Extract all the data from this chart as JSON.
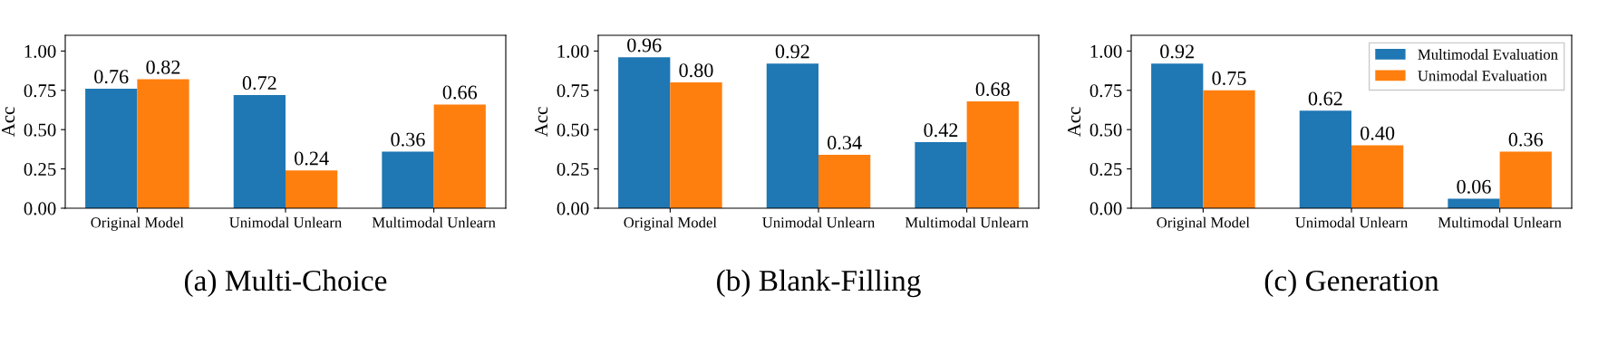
{
  "chart_data": [
    {
      "type": "bar",
      "title": "(a) Multi-Choice",
      "ylabel": "Acc",
      "categories": [
        "Original Model",
        "Unimodal Unlearn",
        "Multimodal Unlearn"
      ],
      "series": [
        {
          "color": "#1f77b4",
          "values": [
            0.76,
            0.72,
            0.36
          ],
          "value_labels": [
            "0.76",
            "0.72",
            "0.36"
          ]
        },
        {
          "color": "#ff7f0e",
          "values": [
            0.82,
            0.24,
            0.66
          ],
          "value_labels": [
            "0.82",
            "0.24",
            "0.66"
          ]
        }
      ],
      "ylim": [
        0,
        1.1
      ],
      "yticks": [
        {
          "value": 0,
          "label": "0.00"
        },
        {
          "value": 0.25,
          "label": "0.25"
        },
        {
          "value": 0.5,
          "label": "0.50"
        },
        {
          "value": 0.75,
          "label": "0.75"
        },
        {
          "value": 1,
          "label": "1.00"
        }
      ],
      "legend": false,
      "grid": false
    },
    {
      "type": "bar",
      "title": "(b) Blank-Filling",
      "ylabel": "Acc",
      "categories": [
        "Original Model",
        "Unimodal Unlearn",
        "Multimodal Unlearn"
      ],
      "series": [
        {
          "color": "#1f77b4",
          "values": [
            0.96,
            0.92,
            0.42
          ],
          "value_labels": [
            "0.96",
            "0.92",
            "0.42"
          ]
        },
        {
          "color": "#ff7f0e",
          "values": [
            0.8,
            0.34,
            0.68
          ],
          "value_labels": [
            "0.80",
            "0.34",
            "0.68"
          ]
        }
      ],
      "ylim": [
        0,
        1.1
      ],
      "yticks": [
        {
          "value": 0,
          "label": "0.00"
        },
        {
          "value": 0.25,
          "label": "0.25"
        },
        {
          "value": 0.5,
          "label": "0.50"
        },
        {
          "value": 0.75,
          "label": "0.75"
        },
        {
          "value": 1,
          "label": "1.00"
        }
      ],
      "legend": false,
      "grid": false
    },
    {
      "type": "bar",
      "title": "(c) Generation",
      "ylabel": "Acc",
      "categories": [
        "Original Model",
        "Unimodal Unlearn",
        "Multimodal Unlearn"
      ],
      "series": [
        {
          "name": "Multimodal Evaluation",
          "color": "#1f77b4",
          "values": [
            0.92,
            0.62,
            0.06
          ],
          "value_labels": [
            "0.92",
            "0.62",
            "0.06"
          ]
        },
        {
          "name": "Unimodal Evaluation",
          "color": "#ff7f0e",
          "values": [
            0.75,
            0.4,
            0.36
          ],
          "value_labels": [
            "0.75",
            "0.40",
            "0.36"
          ]
        }
      ],
      "ylim": [
        0,
        1.1
      ],
      "yticks": [
        {
          "value": 0,
          "label": "0.00"
        },
        {
          "value": 0.25,
          "label": "0.25"
        },
        {
          "value": 0.5,
          "label": "0.50"
        },
        {
          "value": 0.75,
          "label": "0.75"
        },
        {
          "value": 1,
          "label": "1.00"
        }
      ],
      "legend": "top right",
      "grid": false
    }
  ]
}
